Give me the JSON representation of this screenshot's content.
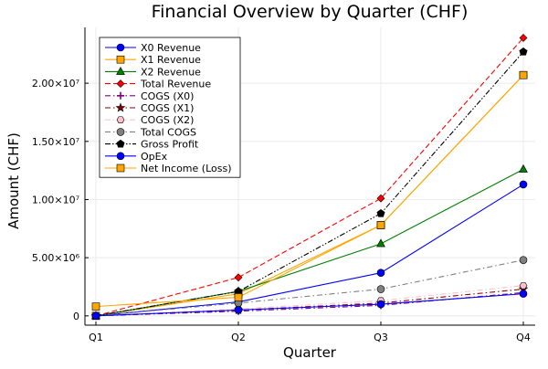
{
  "chart_data": {
    "type": "line",
    "title": "Financial Overview by Quarter (CHF)",
    "xlabel": "Quarter",
    "ylabel": "Amount (CHF)",
    "categories": [
      "Q1",
      "Q2",
      "Q3",
      "Q4"
    ],
    "ylim": [
      -800000,
      24800000
    ],
    "yticks": [
      0,
      5000000,
      10000000,
      15000000,
      20000000
    ],
    "ytick_labels": [
      "0",
      "5.00×10⁶",
      "1.00×10⁷",
      "1.50×10⁷",
      "2.00×10⁷"
    ],
    "grid": true,
    "legend_position": "top-left",
    "series": [
      {
        "name": "X0 Revenue",
        "values": [
          0,
          1200000,
          3700000,
          11300000
        ],
        "color": "#0000ff",
        "dash": "solid",
        "marker": "circle"
      },
      {
        "name": "X1 Revenue",
        "values": [
          0,
          1900000,
          7800000,
          20700000
        ],
        "color": "#ffa500",
        "dash": "solid",
        "marker": "square"
      },
      {
        "name": "X2 Revenue",
        "values": [
          0,
          2100000,
          6200000,
          12600000
        ],
        "color": "#008000",
        "dash": "solid",
        "marker": "triangle"
      },
      {
        "name": "Total Revenue",
        "values": [
          0,
          3300000,
          10100000,
          23900000
        ],
        "color": "#ff0000",
        "dash": "dash",
        "marker": "diamond"
      },
      {
        "name": "COGS (X0)",
        "values": [
          0,
          400000,
          900000,
          2000000
        ],
        "color": "#800080",
        "dash": "dashdot",
        "marker": "plus"
      },
      {
        "name": "COGS (X1)",
        "values": [
          0,
          500000,
          1100000,
          2300000
        ],
        "color": "#8b0000",
        "dash": "dashdot",
        "marker": "star"
      },
      {
        "name": "COGS (X2)",
        "values": [
          0,
          600000,
          1300000,
          2600000
        ],
        "color": "#ffc0cb",
        "dash": "dashdot",
        "marker": "hexagon"
      },
      {
        "name": "Total COGS",
        "values": [
          0,
          1100000,
          2300000,
          4800000
        ],
        "color": "#808080",
        "dash": "dashdot",
        "marker": "circle"
      },
      {
        "name": "Gross Profit",
        "values": [
          0,
          2100000,
          8800000,
          22700000
        ],
        "color": "#000000",
        "dash": "dashdotdot",
        "marker": "pentagon"
      },
      {
        "name": "OpEx",
        "values": [
          0,
          500000,
          1000000,
          1900000
        ],
        "color": "#0000ff",
        "dash": "solid",
        "marker": "circle"
      },
      {
        "name": "Net Income (Loss)",
        "values": [
          800000,
          1600000,
          7800000,
          20700000
        ],
        "color": "#ffa500",
        "dash": "solid",
        "marker": "square"
      }
    ]
  }
}
